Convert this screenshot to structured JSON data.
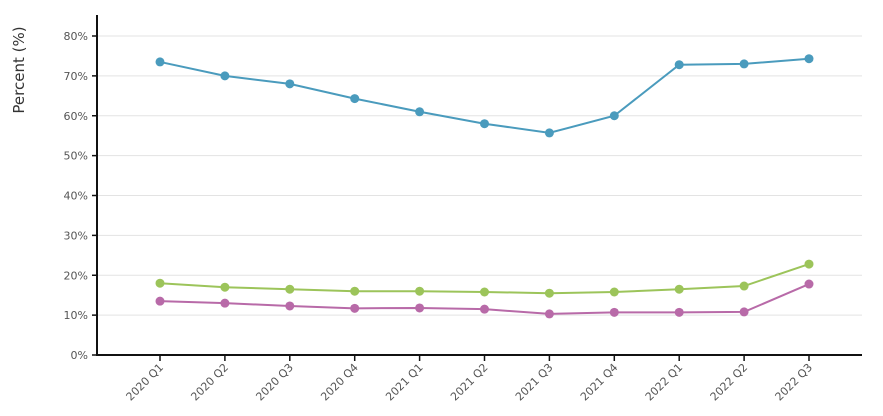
{
  "chart_data": {
    "type": "line",
    "title": "",
    "xlabel": "",
    "ylabel": "Percent (%)",
    "categories": [
      "2020 Q1",
      "2020 Q2",
      "2020 Q3",
      "2020 Q4",
      "2021 Q1",
      "2021 Q2",
      "2021 Q3",
      "2021 Q4",
      "2022 Q1",
      "2022 Q2",
      "2022 Q3"
    ],
    "ylim": [
      0,
      80
    ],
    "yticks": [
      0,
      10,
      20,
      30,
      40,
      50,
      60,
      70,
      80
    ],
    "ytick_labels": [
      "0%",
      "10%",
      "20%",
      "30%",
      "40%",
      "50%",
      "60%",
      "70%",
      "80%"
    ],
    "grid": true,
    "series": [
      {
        "color": "#4a9bbd",
        "values": [
          73.5,
          70.0,
          68.0,
          64.3,
          61.0,
          58.0,
          55.7,
          60.0,
          72.8,
          73.0,
          74.3
        ]
      },
      {
        "color": "#9cc45a",
        "values": [
          18.0,
          17.0,
          16.5,
          16.0,
          16.0,
          15.8,
          15.5,
          15.8,
          16.5,
          17.3,
          22.8
        ]
      },
      {
        "color": "#b86aa8",
        "values": [
          13.5,
          13.0,
          12.3,
          11.7,
          11.8,
          11.5,
          10.3,
          10.7,
          10.7,
          10.8,
          17.8
        ]
      }
    ]
  }
}
